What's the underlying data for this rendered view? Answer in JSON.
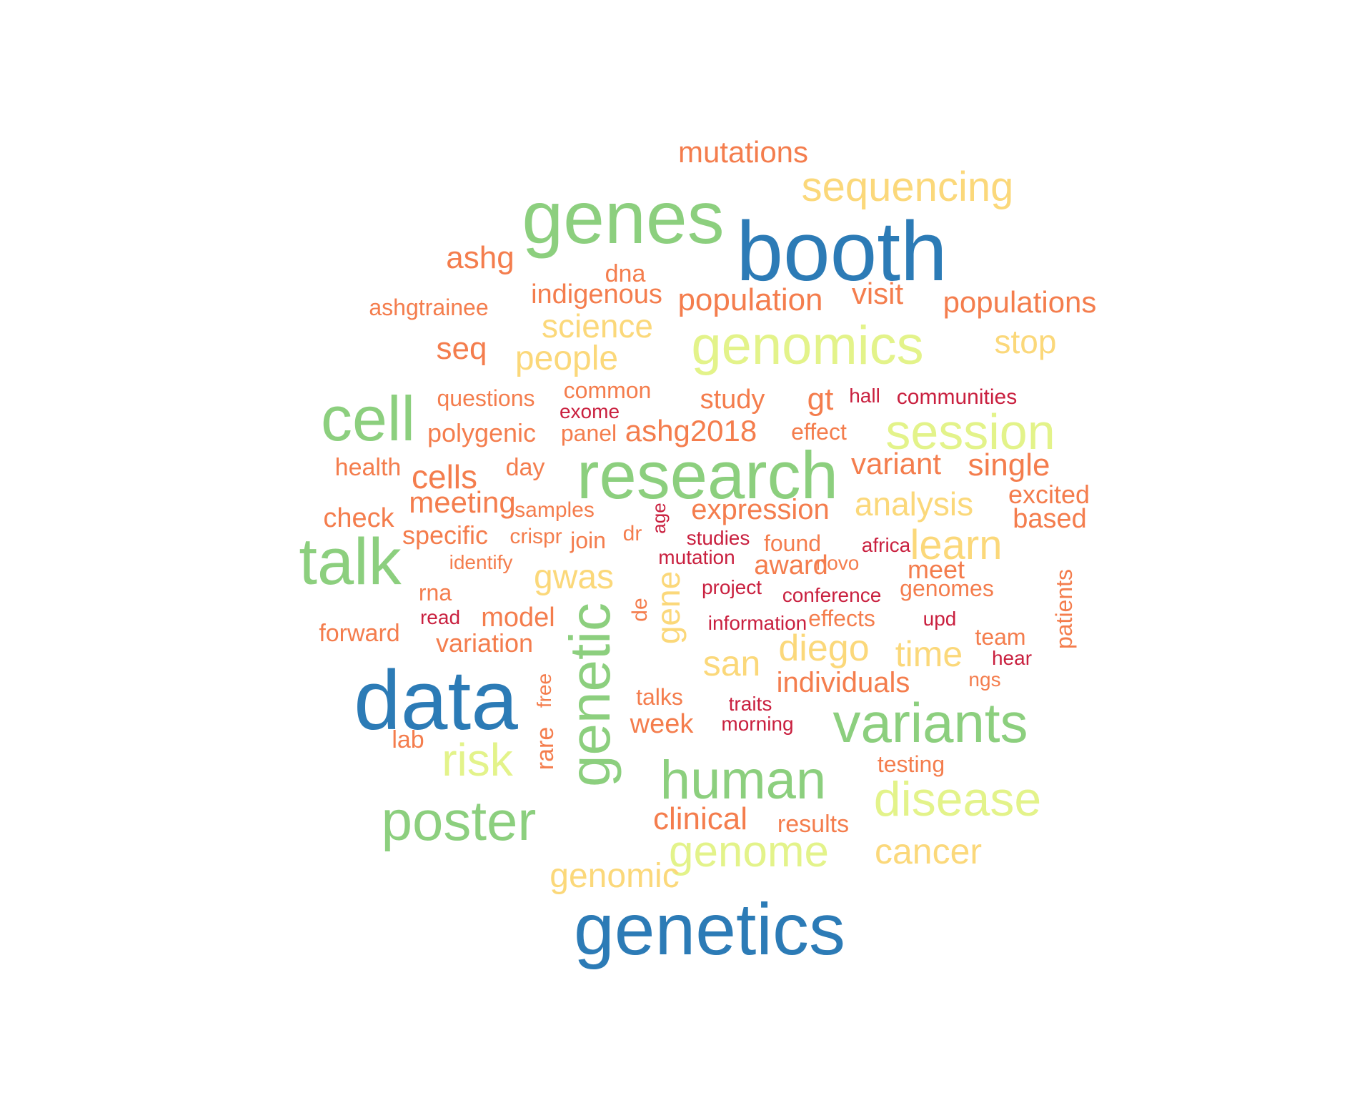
{
  "palette": {
    "blue": "#2c7bb6",
    "green": "#8ccf7e",
    "lime": "#e3f38a",
    "yellow": "#fbd87a",
    "orange": "#f47d4d",
    "red": "#c9203f"
  },
  "words": [
    {
      "text": "mutations",
      "color": "orange"
    },
    {
      "text": "sequencing",
      "color": "yellow"
    },
    {
      "text": "genes",
      "color": "green"
    },
    {
      "text": "booth",
      "color": "blue"
    },
    {
      "text": "ashg",
      "color": "orange"
    },
    {
      "text": "dna",
      "color": "orange"
    },
    {
      "text": "indigenous",
      "color": "orange"
    },
    {
      "text": "population",
      "color": "orange"
    },
    {
      "text": "visit",
      "color": "orange"
    },
    {
      "text": "populations",
      "color": "orange"
    },
    {
      "text": "ashgtrainee",
      "color": "orange"
    },
    {
      "text": "science",
      "color": "yellow"
    },
    {
      "text": "genomics",
      "color": "lime"
    },
    {
      "text": "stop",
      "color": "yellow"
    },
    {
      "text": "seq",
      "color": "orange"
    },
    {
      "text": "people",
      "color": "yellow"
    },
    {
      "text": "cell",
      "color": "green"
    },
    {
      "text": "questions",
      "color": "orange"
    },
    {
      "text": "common",
      "color": "orange"
    },
    {
      "text": "study",
      "color": "orange"
    },
    {
      "text": "gt",
      "color": "orange"
    },
    {
      "text": "hall",
      "color": "red"
    },
    {
      "text": "communities",
      "color": "red"
    },
    {
      "text": "exome",
      "color": "red"
    },
    {
      "text": "polygenic",
      "color": "orange"
    },
    {
      "text": "panel",
      "color": "orange"
    },
    {
      "text": "ashg2018",
      "color": "orange"
    },
    {
      "text": "effect",
      "color": "orange"
    },
    {
      "text": "session",
      "color": "lime"
    },
    {
      "text": "health",
      "color": "orange"
    },
    {
      "text": "cells",
      "color": "orange"
    },
    {
      "text": "day",
      "color": "orange"
    },
    {
      "text": "research",
      "color": "green"
    },
    {
      "text": "variant",
      "color": "orange"
    },
    {
      "text": "single",
      "color": "orange"
    },
    {
      "text": "excited",
      "color": "orange"
    },
    {
      "text": "meeting",
      "color": "orange"
    },
    {
      "text": "analysis",
      "color": "yellow"
    },
    {
      "text": "check",
      "color": "orange"
    },
    {
      "text": "samples",
      "color": "orange"
    },
    {
      "text": "expression",
      "color": "orange"
    },
    {
      "text": "based",
      "color": "orange"
    },
    {
      "text": "age",
      "color": "red"
    },
    {
      "text": "specific",
      "color": "orange"
    },
    {
      "text": "crispr",
      "color": "orange"
    },
    {
      "text": "join",
      "color": "orange"
    },
    {
      "text": "dr",
      "color": "orange"
    },
    {
      "text": "studies",
      "color": "red"
    },
    {
      "text": "found",
      "color": "orange"
    },
    {
      "text": "africa",
      "color": "red"
    },
    {
      "text": "learn",
      "color": "yellow"
    },
    {
      "text": "talk",
      "color": "green"
    },
    {
      "text": "identify",
      "color": "orange"
    },
    {
      "text": "mutation",
      "color": "red"
    },
    {
      "text": "award",
      "color": "orange"
    },
    {
      "text": "novo",
      "color": "orange"
    },
    {
      "text": "meet",
      "color": "orange"
    },
    {
      "text": "patients",
      "color": "orange"
    },
    {
      "text": "gwas",
      "color": "yellow"
    },
    {
      "text": "gene",
      "color": "yellow"
    },
    {
      "text": "project",
      "color": "red"
    },
    {
      "text": "conference",
      "color": "red"
    },
    {
      "text": "genomes",
      "color": "orange"
    },
    {
      "text": "rna",
      "color": "orange"
    },
    {
      "text": "de",
      "color": "orange"
    },
    {
      "text": "read",
      "color": "red"
    },
    {
      "text": "model",
      "color": "orange"
    },
    {
      "text": "information",
      "color": "red"
    },
    {
      "text": "effects",
      "color": "orange"
    },
    {
      "text": "upd",
      "color": "red"
    },
    {
      "text": "forward",
      "color": "orange"
    },
    {
      "text": "genetic",
      "color": "green"
    },
    {
      "text": "team",
      "color": "orange"
    },
    {
      "text": "variation",
      "color": "orange"
    },
    {
      "text": "diego",
      "color": "yellow"
    },
    {
      "text": "time",
      "color": "yellow"
    },
    {
      "text": "hear",
      "color": "red"
    },
    {
      "text": "san",
      "color": "yellow"
    },
    {
      "text": "free",
      "color": "orange"
    },
    {
      "text": "individuals",
      "color": "orange"
    },
    {
      "text": "ngs",
      "color": "orange"
    },
    {
      "text": "data",
      "color": "blue"
    },
    {
      "text": "talks",
      "color": "orange"
    },
    {
      "text": "traits",
      "color": "red"
    },
    {
      "text": "variants",
      "color": "green"
    },
    {
      "text": "week",
      "color": "orange"
    },
    {
      "text": "morning",
      "color": "red"
    },
    {
      "text": "lab",
      "color": "orange"
    },
    {
      "text": "rare",
      "color": "orange"
    },
    {
      "text": "risk",
      "color": "lime"
    },
    {
      "text": "testing",
      "color": "orange"
    },
    {
      "text": "human",
      "color": "green"
    },
    {
      "text": "disease",
      "color": "lime"
    },
    {
      "text": "poster",
      "color": "green"
    },
    {
      "text": "clinical",
      "color": "orange"
    },
    {
      "text": "results",
      "color": "orange"
    },
    {
      "text": "genome",
      "color": "lime"
    },
    {
      "text": "cancer",
      "color": "yellow"
    },
    {
      "text": "genomic",
      "color": "yellow"
    },
    {
      "text": "genetics",
      "color": "blue"
    }
  ]
}
